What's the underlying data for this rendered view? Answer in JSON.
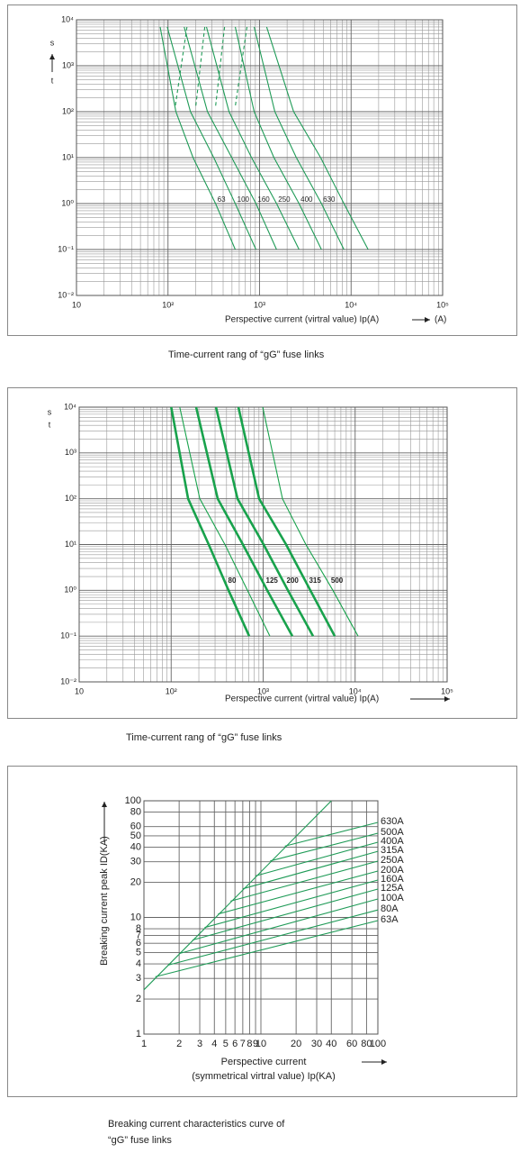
{
  "chart_data": [
    {
      "type": "line",
      "log_x": true,
      "log_y": true,
      "minor_grid": true,
      "xlabel": "Perspective current (virtral value) Ip(A)",
      "xunit": "(A)",
      "ylabel_top": "s",
      "ylabel_bottom": "t",
      "caption": [
        "Time-current rang of “gG” fuse links"
      ],
      "xlim": [
        10,
        100000
      ],
      "ylim": [
        0.01,
        10000
      ],
      "xticks": [
        10,
        {
          "value": 100,
          "label": "10²"
        },
        {
          "value": 1000,
          "label": "10³"
        },
        {
          "value": 10000,
          "label": "10⁴"
        },
        {
          "value": 100000,
          "label": "10⁵"
        }
      ],
      "yticks": [
        {
          "value": 0.01,
          "label": "10⁻²"
        },
        {
          "value": 0.1,
          "label": "10⁻¹"
        },
        {
          "value": 1,
          "label": "10⁰"
        },
        {
          "value": 10,
          "label": "10¹"
        },
        {
          "value": 100,
          "label": "10²"
        },
        {
          "value": 1000,
          "label": "10³"
        },
        {
          "value": 10000,
          "label": "10⁴"
        }
      ],
      "series": [
        {
          "name": "63",
          "color": "#1f9b57",
          "x": [
            82,
            122,
            188,
            331,
            543
          ],
          "values": [
            7000,
            100,
            10,
            1,
            0.1
          ]
        },
        {
          "name": "100",
          "color": "#1f9b57",
          "x": [
            98,
            176,
            316,
            543,
            914
          ],
          "values": [
            7000,
            100,
            10,
            1,
            0.1
          ]
        },
        {
          "name": "160",
          "color": "#1f9b57",
          "x": [
            150,
            270,
            497,
            914,
            1535
          ],
          "values": [
            7000,
            100,
            10,
            1,
            0.1
          ]
        },
        {
          "name": "250",
          "color": "#1f9b57",
          "x": [
            263,
            464,
            817,
            1535,
            2698
          ],
          "values": [
            7000,
            100,
            10,
            1,
            0.1
          ]
        },
        {
          "name": "400",
          "color": "#1f9b57",
          "x": [
            543,
            873,
            1435,
            2698,
            4745
          ],
          "values": [
            7000,
            100,
            10,
            1,
            0.1
          ]
        },
        {
          "name": "630",
          "color": "#1f9b57",
          "x": [
            873,
            1469,
            2523,
            4745,
            8356
          ],
          "values": [
            7000,
            100,
            10,
            1,
            0.1
          ]
        },
        {
          "color": "#1f9b57",
          "x": [
            1197,
            2360,
            4645,
            8356,
            15350
          ],
          "values": [
            7000,
            100,
            10,
            1,
            0.1
          ]
        },
        {
          "color": "#1f9b57",
          "style": "dashed",
          "x": [
            161,
            120
          ],
          "values": [
            7000,
            130
          ]
        },
        {
          "color": "#1f9b57",
          "style": "dashed",
          "x": [
            252,
            201
          ],
          "values": [
            7000,
            130
          ]
        },
        {
          "color": "#1f9b57",
          "style": "dashed",
          "x": [
            415,
            331
          ],
          "values": [
            7000,
            130
          ]
        },
        {
          "color": "#1f9b57",
          "style": "dashed",
          "x": [
            729,
            543
          ],
          "values": [
            7000,
            130
          ]
        }
      ]
    },
    {
      "type": "line",
      "log_x": true,
      "log_y": true,
      "minor_grid": true,
      "xlabel": "Perspective current (virtral value) Ip(A)",
      "ylabel_top": "s",
      "ylabel_bottom": "t",
      "caption": [
        "Time-current rang of “gG” fuse links"
      ],
      "xlim": [
        10,
        100000
      ],
      "ylim": [
        0.01,
        10000
      ],
      "xticks": [
        10,
        {
          "value": 100,
          "label": "10²"
        },
        {
          "value": 1000,
          "label": "10³"
        },
        {
          "value": 10000,
          "label": "10⁴"
        },
        {
          "value": 100000,
          "label": "10⁵"
        }
      ],
      "yticks": [
        {
          "value": 0.01,
          "label": "10⁻²"
        },
        {
          "value": 0.1,
          "label": "10⁻¹"
        },
        {
          "value": 1,
          "label": "10⁰"
        },
        {
          "value": 10,
          "label": "10¹"
        },
        {
          "value": 100,
          "label": "10²"
        },
        {
          "value": 1000,
          "label": "10³"
        },
        {
          "value": 10000,
          "label": "10⁴"
        }
      ],
      "series": [
        {
          "name": "80",
          "color": "#18a24c",
          "style": "bold",
          "x": [
            100,
            153,
            256,
            420,
            705
          ],
          "values": [
            10000,
            100,
            10,
            1,
            0.1
          ]
        },
        {
          "color": "#18a24c",
          "x": [
            124,
            205,
            384,
            674,
            1184
          ],
          "values": [
            10000,
            100,
            10,
            1,
            0.1
          ]
        },
        {
          "name": "125",
          "color": "#18a24c",
          "style": "bold",
          "x": [
            187,
            321,
            603,
            1107,
            2080
          ],
          "values": [
            10000,
            100,
            10,
            1,
            0.1
          ]
        },
        {
          "name": "200",
          "color": "#18a24c",
          "style": "bold",
          "x": [
            307,
            526,
            1011,
            1858,
            3490
          ],
          "values": [
            10000,
            100,
            10,
            1,
            0.1
          ]
        },
        {
          "name": "315",
          "color": "#18a24c",
          "style": "bold",
          "x": [
            538,
            903,
            1775,
            3258,
            5998
          ],
          "values": [
            10000,
            100,
            10,
            1,
            0.1
          ]
        },
        {
          "name": "500",
          "color": "#18a24c",
          "x": [
            989,
            1623,
            2917,
            5727,
            10760
          ],
          "values": [
            10000,
            100,
            10,
            1,
            0.1
          ]
        }
      ]
    },
    {
      "type": "line",
      "log_x": true,
      "log_y": true,
      "minor_grid": false,
      "xlabel": "Perspective current",
      "xlabel2": "(symmetrical virtral value) Ip(KA)",
      "ylabel": "Breaking current peak ID(KA)",
      "caption": [
        "Breaking current characteristics curve of",
        "“gG” fuse links"
      ],
      "xlim": [
        1,
        100
      ],
      "ylim": [
        1,
        100
      ],
      "xticks": [
        1,
        2,
        3,
        4,
        5,
        6,
        7,
        8,
        9,
        10,
        20,
        30,
        40,
        60,
        80,
        100
      ],
      "yticks": [
        1,
        2,
        3,
        4,
        5,
        6,
        7,
        8,
        10,
        20,
        30,
        40,
        50,
        60,
        80,
        100
      ],
      "series": [
        {
          "color": "#1f9b57",
          "x": [
            1,
            40
          ],
          "values": [
            2.4,
            100
          ]
        },
        {
          "name": "63A",
          "color": "#1f9b57",
          "x": [
            1.25,
            100
          ],
          "values": [
            3.1,
            9.4
          ]
        },
        {
          "name": "80A",
          "color": "#1f9b57",
          "x": [
            1.6,
            100
          ],
          "values": [
            3.9,
            11.6
          ]
        },
        {
          "name": "100A",
          "color": "#1f9b57",
          "x": [
            2,
            100
          ],
          "values": [
            4.9,
            14.4
          ]
        },
        {
          "name": "125A",
          "color": "#1f9b57",
          "x": [
            2.6,
            100
          ],
          "values": [
            6.4,
            17.5
          ]
        },
        {
          "name": "160A",
          "color": "#1f9b57",
          "x": [
            3.3,
            100
          ],
          "values": [
            8.2,
            20.9
          ]
        },
        {
          "name": "200A",
          "color": "#1f9b57",
          "x": [
            4.3,
            100
          ],
          "values": [
            10.7,
            25
          ]
        },
        {
          "name": "250A",
          "color": "#1f9b57",
          "x": [
            5.5,
            100
          ],
          "values": [
            13.8,
            30.4
          ]
        },
        {
          "name": "315A",
          "color": "#1f9b57",
          "x": [
            7,
            100
          ],
          "values": [
            17.6,
            36.9
          ]
        },
        {
          "name": "400A",
          "color": "#1f9b57",
          "x": [
            9,
            100
          ],
          "values": [
            22.7,
            44.1
          ]
        },
        {
          "name": "500A",
          "color": "#1f9b57",
          "x": [
            12,
            100
          ],
          "values": [
            30.5,
            52.7
          ]
        },
        {
          "name": "630A",
          "color": "#1f9b57",
          "x": [
            16,
            100
          ],
          "values": [
            40.8,
            65.3
          ]
        }
      ]
    }
  ]
}
